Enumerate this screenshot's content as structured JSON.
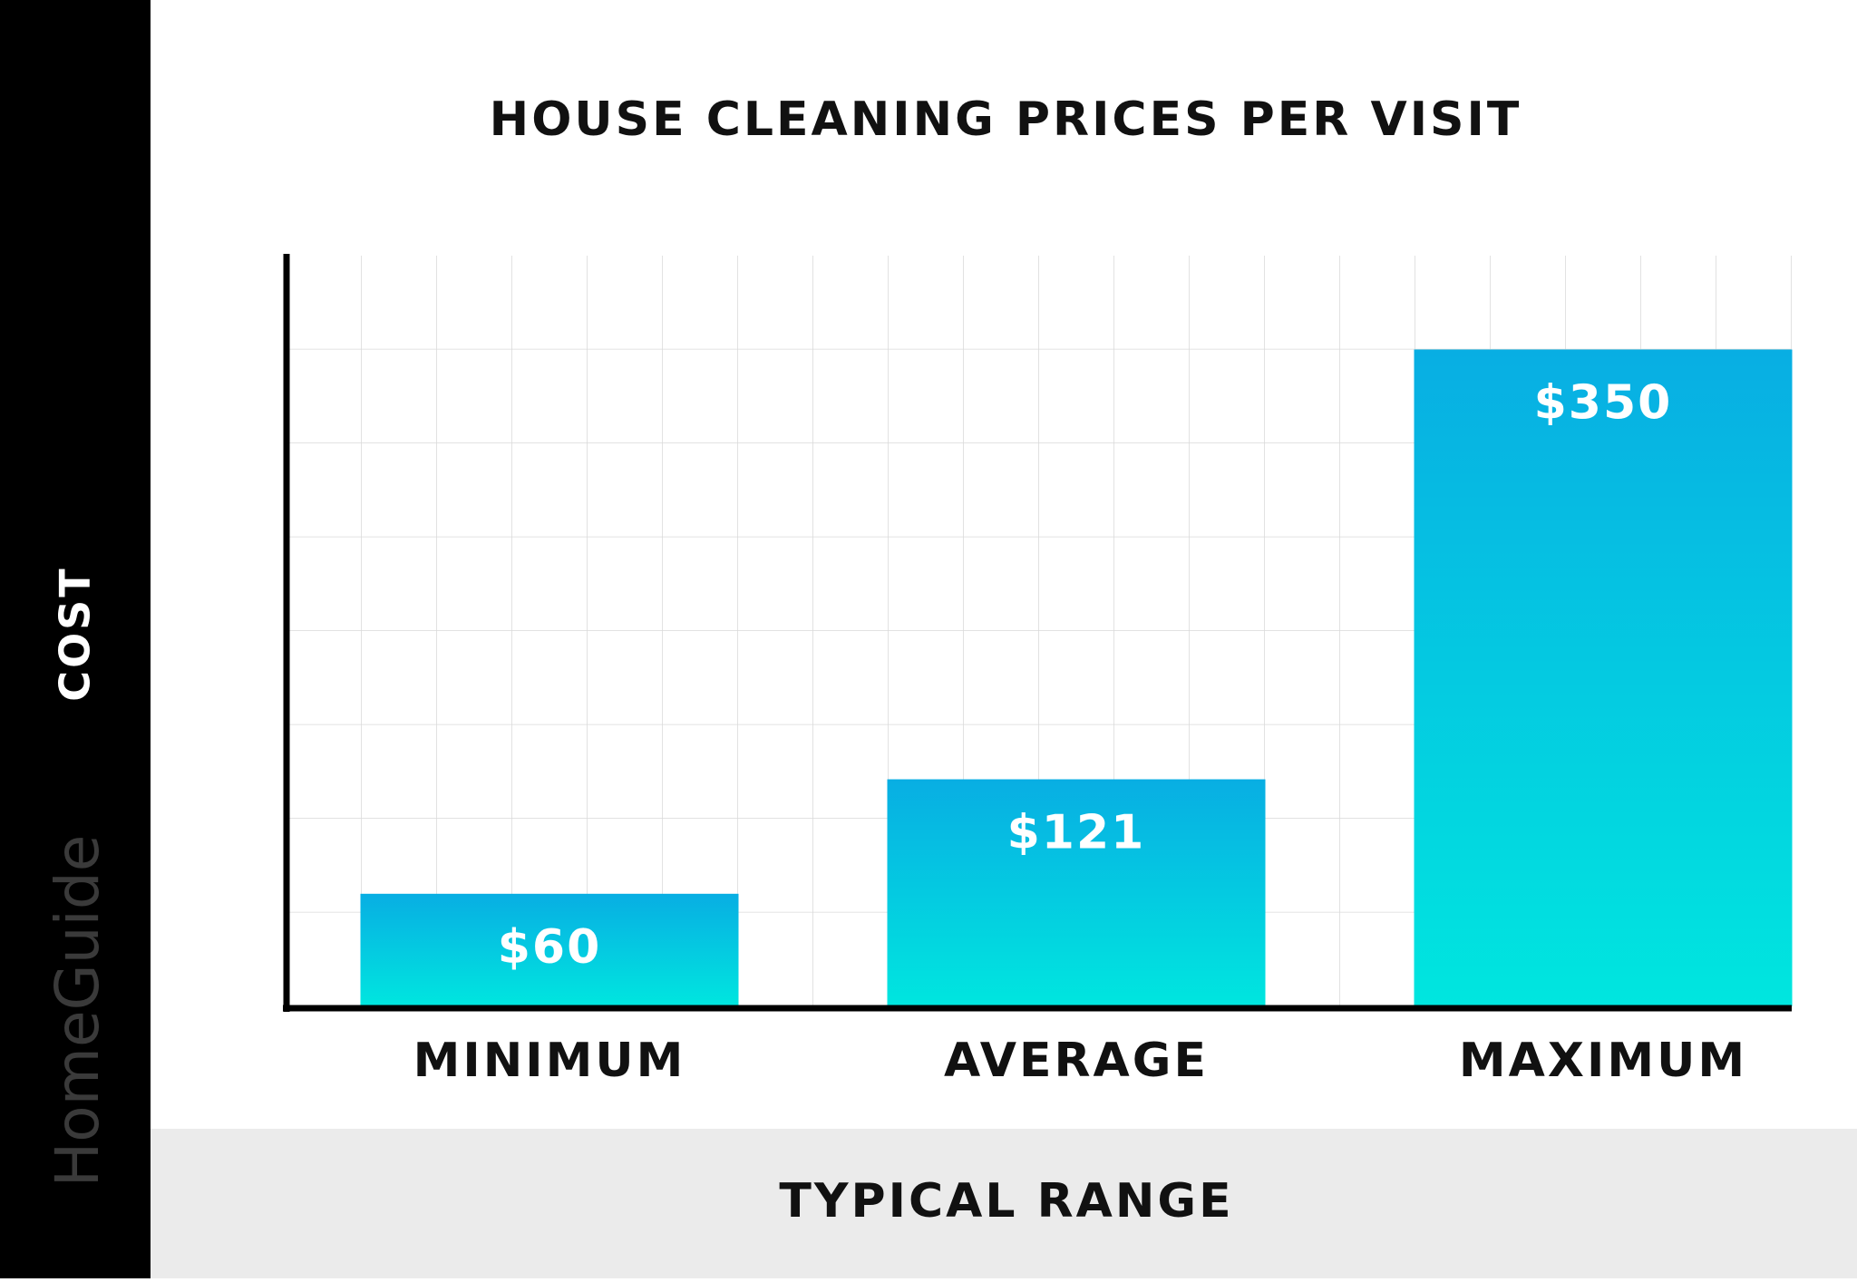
{
  "chart_data": {
    "type": "bar",
    "title": "HOUSE CLEANING PRICES PER VISIT",
    "y_label": "COST",
    "x_label": "TYPICAL RANGE",
    "watermark": "HomeGuide",
    "categories": [
      "MINIMUM",
      "AVERAGE",
      "MAXIMUM"
    ],
    "values": [
      60,
      121,
      350
    ],
    "value_labels": [
      "$60",
      "$121",
      "$350"
    ],
    "gradient": [
      "#08aee3",
      "#00e6df"
    ],
    "ylim": [
      0,
      400
    ]
  }
}
